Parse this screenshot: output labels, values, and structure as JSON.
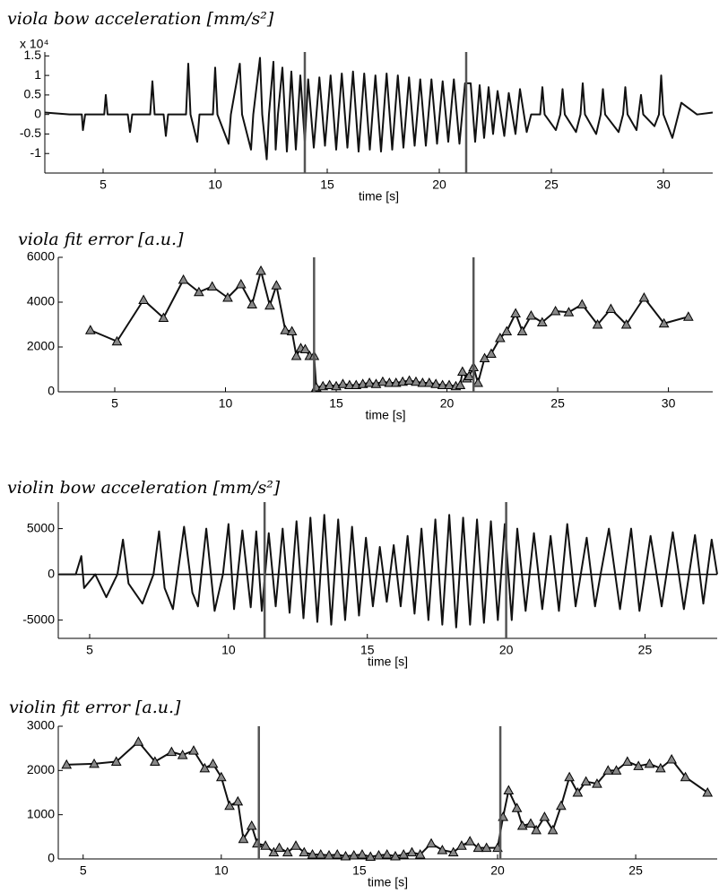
{
  "chart_data": [
    {
      "type": "line",
      "title": "viola bow acceleration [mm/s²]",
      "xlabel": "time [s]",
      "y_multiplier": "x 10⁴",
      "color": "#111",
      "vline_color": "#555",
      "xlim": [
        2.4,
        32.2
      ],
      "xticks": [
        5,
        10,
        15,
        20,
        25,
        30
      ],
      "ylim": [
        -1.5,
        1.6
      ],
      "yticks": [
        -1,
        -0.5,
        0,
        0.5,
        1,
        1.5
      ],
      "vlines": [
        14.0,
        21.2
      ],
      "x": [
        2.4,
        3.5,
        4.05,
        4.1,
        4.2,
        5.05,
        5.12,
        5.2,
        6.1,
        6.2,
        6.3,
        7.1,
        7.2,
        7.3,
        7.7,
        7.8,
        7.9,
        8.7,
        8.8,
        8.9,
        9.2,
        9.3,
        9.9,
        10.0,
        10.1,
        10.6,
        10.7,
        11.1,
        11.2,
        11.6,
        11.7,
        12.0,
        12.1,
        12.3,
        12.4,
        12.6,
        12.7,
        12.8,
        13.0,
        13.2,
        13.4,
        13.6,
        13.8,
        14.0,
        14.15,
        14.4,
        14.65,
        14.9,
        15.15,
        15.4,
        15.65,
        15.9,
        16.15,
        16.4,
        16.65,
        16.9,
        17.15,
        17.4,
        17.65,
        17.9,
        18.15,
        18.4,
        18.65,
        18.9,
        19.15,
        19.4,
        19.65,
        19.9,
        20.15,
        20.4,
        20.65,
        20.9,
        21.15,
        21.4,
        21.6,
        21.8,
        22.0,
        22.2,
        22.4,
        22.6,
        22.9,
        23.1,
        23.4,
        23.6,
        23.9,
        24.1,
        24.5,
        24.6,
        24.7,
        25.2,
        25.4,
        25.5,
        25.6,
        26.1,
        26.3,
        26.4,
        26.5,
        27.0,
        27.2,
        27.3,
        27.4,
        28.0,
        28.2,
        28.3,
        28.4,
        28.8,
        29.0,
        29.1,
        29.6,
        29.8,
        29.9,
        30.0,
        30.4,
        30.8,
        31.5,
        32.2
      ],
      "values": [
        0.05,
        0,
        0,
        -0.4,
        0,
        0,
        0.5,
        0,
        0,
        -0.45,
        0,
        0,
        0.85,
        0,
        0,
        -0.55,
        0,
        0,
        1.3,
        0,
        -0.7,
        0,
        0,
        1.2,
        0,
        -0.75,
        0,
        1.3,
        0,
        -0.9,
        0,
        1.45,
        0,
        -1.15,
        0,
        1.35,
        -0.9,
        0,
        1.2,
        -0.95,
        1.1,
        -0.9,
        1.0,
        -0.7,
        0.9,
        -0.85,
        0.95,
        -0.8,
        1.0,
        -0.9,
        1.05,
        -0.85,
        1.1,
        -0.95,
        1.05,
        -0.9,
        1.0,
        -0.95,
        1.05,
        -0.9,
        1.0,
        -0.85,
        0.95,
        -0.8,
        0.9,
        -0.8,
        0.9,
        -0.75,
        0.85,
        -0.7,
        0.9,
        -0.75,
        0.8,
        0.8,
        -0.7,
        0.75,
        -0.6,
        0.7,
        -0.5,
        0.6,
        -0.55,
        0.55,
        -0.5,
        0.65,
        -0.45,
        0,
        0,
        0.7,
        0,
        -0.4,
        0,
        0.65,
        0,
        -0.45,
        0,
        0.8,
        0,
        -0.5,
        0,
        0.65,
        0,
        -0.45,
        0,
        0.7,
        0,
        -0.4,
        0.5,
        0,
        -0.3,
        0,
        1.0,
        0,
        -0.6,
        0.3,
        0,
        0.05
      ]
    },
    {
      "type": "line",
      "title": "viola fit error [a.u.]",
      "xlabel": "time [s]",
      "marker": "triangle",
      "color": "#111",
      "marker_color": "#888",
      "vline_color": "#555",
      "xlim": [
        2.45,
        32
      ],
      "xticks": [
        5,
        10,
        15,
        20,
        25,
        30
      ],
      "ylim": [
        0,
        6000
      ],
      "yticks": [
        0,
        2000,
        4000,
        6000
      ],
      "vlines": [
        14.0,
        21.2
      ],
      "x": [
        3.9,
        5.1,
        6.3,
        7.2,
        8.1,
        8.8,
        9.4,
        10.1,
        10.7,
        11.2,
        11.6,
        12.0,
        12.3,
        12.7,
        13.0,
        13.2,
        13.4,
        13.6,
        13.8,
        14.0,
        14.1,
        14.4,
        14.7,
        15.0,
        15.3,
        15.6,
        15.9,
        16.2,
        16.5,
        16.8,
        17.1,
        17.4,
        17.7,
        18.0,
        18.3,
        18.6,
        18.9,
        19.2,
        19.5,
        19.8,
        20.1,
        20.4,
        20.6,
        20.7,
        20.9,
        21.0,
        21.2,
        21.4,
        21.7,
        22.0,
        22.4,
        22.7,
        23.1,
        23.4,
        23.8,
        24.3,
        24.9,
        25.5,
        26.1,
        26.8,
        27.4,
        28.1,
        28.9,
        29.8,
        30.9
      ],
      "values": [
        2750,
        2250,
        4100,
        3300,
        5000,
        4450,
        4700,
        4200,
        4800,
        3900,
        5400,
        3850,
        4750,
        2750,
        2700,
        1600,
        1950,
        1900,
        1600,
        1600,
        200,
        250,
        300,
        250,
        350,
        300,
        300,
        350,
        400,
        350,
        450,
        400,
        400,
        450,
        500,
        450,
        400,
        400,
        350,
        300,
        300,
        250,
        300,
        900,
        600,
        700,
        1100,
        400,
        1500,
        1700,
        2400,
        2700,
        3500,
        2700,
        3400,
        3100,
        3600,
        3550,
        3900,
        3000,
        3700,
        3000,
        4200,
        3050,
        3350
      ]
    },
    {
      "type": "line",
      "title": "violin bow acceleration [mm/s²]",
      "xlabel": "time [s]",
      "zero_line": true,
      "color": "#111",
      "vline_color": "#555",
      "xlim": [
        3.87,
        27.6
      ],
      "xticks": [
        5,
        10,
        15,
        20,
        25
      ],
      "ylim": [
        -7000,
        7900
      ],
      "yticks": [
        -5000,
        0,
        5000
      ],
      "vlines": [
        11.3,
        20.0
      ],
      "x": [
        3.9,
        4.5,
        4.7,
        4.8,
        5.2,
        5.6,
        6.0,
        6.2,
        6.4,
        6.9,
        7.3,
        7.5,
        7.7,
        8.0,
        8.4,
        8.7,
        8.9,
        9.2,
        9.5,
        9.8,
        10.0,
        10.2,
        10.5,
        10.8,
        11.0,
        11.2,
        11.45,
        11.7,
        11.95,
        12.2,
        12.45,
        12.7,
        12.95,
        13.2,
        13.45,
        13.7,
        13.95,
        14.2,
        14.45,
        14.7,
        14.95,
        15.2,
        15.45,
        15.7,
        15.95,
        16.2,
        16.45,
        16.7,
        16.95,
        17.2,
        17.45,
        17.7,
        17.95,
        18.2,
        18.45,
        18.7,
        18.95,
        19.2,
        19.45,
        19.7,
        19.95,
        20.2,
        20.4,
        20.7,
        21.0,
        21.3,
        21.6,
        21.9,
        22.2,
        22.5,
        22.9,
        23.2,
        23.4,
        23.7,
        24.1,
        24.5,
        24.8,
        25.2,
        25.6,
        26.0,
        26.4,
        26.8,
        27.1,
        27.4,
        27.6
      ],
      "values": [
        0,
        0,
        2000,
        -1500,
        0,
        -2500,
        0,
        3800,
        -1000,
        -3200,
        0,
        4700,
        -1500,
        -3800,
        5200,
        -2000,
        -3500,
        5000,
        -4000,
        0,
        5500,
        -3800,
        4800,
        -3600,
        4700,
        -4000,
        4500,
        -3500,
        5000,
        -4200,
        5800,
        -4800,
        6200,
        -5200,
        6500,
        -5500,
        6000,
        -5000,
        5200,
        -4500,
        4000,
        -3500,
        3000,
        -3000,
        3200,
        -3500,
        4200,
        -4300,
        5000,
        -5000,
        6000,
        -5500,
        6500,
        -5800,
        6200,
        -5500,
        6000,
        -5300,
        5800,
        -5000,
        5500,
        -5000,
        5000,
        -4000,
        4500,
        -3800,
        4200,
        -4000,
        5500,
        -3500,
        4000,
        -3500,
        0,
        5000,
        -3800,
        5000,
        -4000,
        4200,
        -3500,
        4600,
        -3800,
        4300,
        -3200,
        3800,
        0
      ]
    },
    {
      "type": "line",
      "title": "violin fit error [a.u.]",
      "xlabel": "time [s]",
      "marker": "triangle",
      "color": "#111",
      "marker_color": "#888",
      "vline_color": "#555",
      "xlim": [
        4.1,
        27.95
      ],
      "xticks": [
        5,
        10,
        15,
        20,
        25
      ],
      "ylim": [
        0,
        3000
      ],
      "yticks": [
        0,
        1000,
        2000,
        3000
      ],
      "vlines": [
        11.36,
        20.1
      ],
      "x": [
        4.4,
        5.4,
        6.2,
        7.0,
        7.6,
        8.2,
        8.6,
        9.0,
        9.4,
        9.7,
        10.0,
        10.3,
        10.6,
        10.8,
        11.1,
        11.3,
        11.6,
        11.9,
        12.1,
        12.4,
        12.7,
        13.0,
        13.3,
        13.6,
        13.9,
        14.2,
        14.5,
        14.8,
        15.1,
        15.4,
        15.7,
        16.0,
        16.3,
        16.6,
        16.9,
        17.2,
        17.6,
        18.0,
        18.4,
        18.7,
        19.0,
        19.3,
        19.6,
        20.0,
        20.2,
        20.4,
        20.7,
        20.9,
        21.2,
        21.4,
        21.7,
        22.0,
        22.3,
        22.6,
        22.9,
        23.2,
        23.6,
        24.0,
        24.3,
        24.7,
        25.1,
        25.5,
        25.9,
        26.3,
        26.8,
        27.6
      ],
      "values": [
        2130,
        2150,
        2200,
        2650,
        2200,
        2420,
        2350,
        2450,
        2050,
        2150,
        1850,
        1200,
        1300,
        450,
        750,
        350,
        300,
        150,
        250,
        150,
        300,
        150,
        100,
        100,
        80,
        100,
        60,
        80,
        100,
        50,
        80,
        100,
        60,
        100,
        150,
        100,
        350,
        200,
        150,
        300,
        400,
        250,
        250,
        250,
        950,
        1550,
        1150,
        750,
        800,
        650,
        950,
        650,
        1200,
        1850,
        1500,
        1750,
        1700,
        2000,
        2000,
        2200,
        2100,
        2150,
        2050,
        2250,
        1850,
        1500
      ]
    }
  ]
}
